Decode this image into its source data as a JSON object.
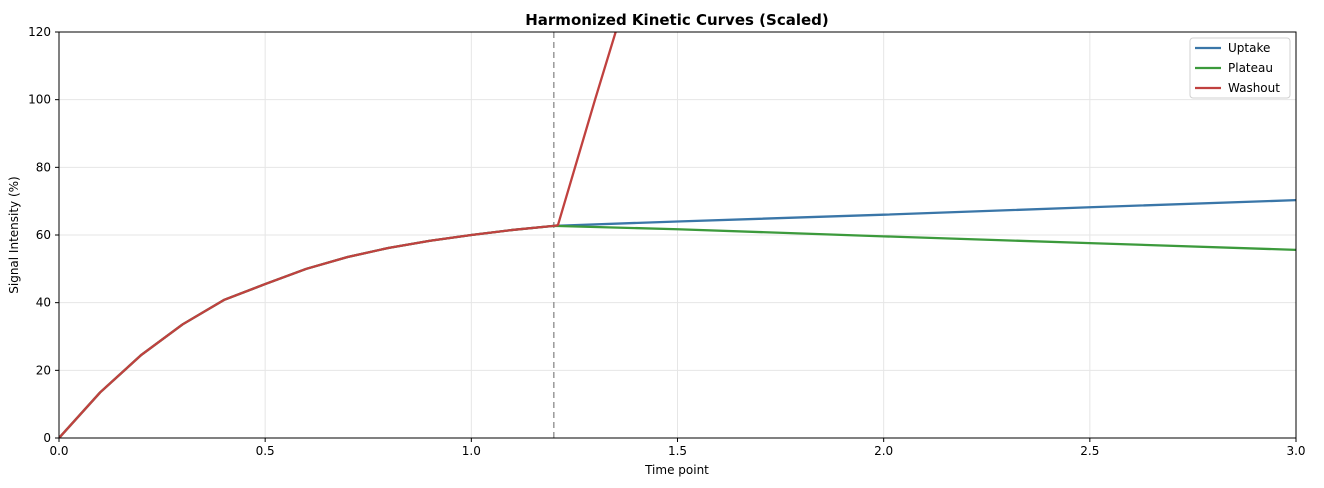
{
  "chart_data": {
    "type": "line",
    "title": "Harmonized Kinetic Curves (Scaled)",
    "xlabel": "Time point",
    "ylabel": "Signal Intensity (%)",
    "xlim": [
      0,
      3
    ],
    "ylim": [
      0,
      120
    ],
    "xticks": [
      "0.0",
      "0.5",
      "1.0",
      "1.5",
      "2.0",
      "2.5",
      "3.0"
    ],
    "yticks": [
      "0",
      "20",
      "40",
      "60",
      "80",
      "100",
      "120"
    ],
    "grid": true,
    "legend_position": "top-right",
    "vline_x": 1.2,
    "series": [
      {
        "name": "Uptake",
        "color": "#3a76a8",
        "x": [
          0,
          0.1,
          0.2,
          0.3,
          0.4,
          0.5,
          0.6,
          0.7,
          0.8,
          0.9,
          1.0,
          1.1,
          1.2,
          1.5,
          2.0,
          2.5,
          3.0
        ],
        "y": [
          0,
          13.5,
          24.6,
          33.6,
          40.8,
          45.5,
          50.0,
          53.5,
          56.2,
          58.3,
          60.0,
          61.5,
          62.7,
          64.0,
          66.0,
          68.2,
          70.3
        ]
      },
      {
        "name": "Plateau",
        "color": "#3c9a3c",
        "x": [
          0,
          0.1,
          0.2,
          0.3,
          0.4,
          0.5,
          0.6,
          0.7,
          0.8,
          0.9,
          1.0,
          1.1,
          1.2,
          1.5,
          2.0,
          2.5,
          3.0
        ],
        "y": [
          0,
          13.5,
          24.6,
          33.6,
          40.8,
          45.5,
          50.0,
          53.5,
          56.2,
          58.3,
          60.0,
          61.5,
          62.7,
          61.7,
          59.6,
          57.6,
          55.6
        ]
      },
      {
        "name": "Washout",
        "color": "#c0413f",
        "x": [
          0,
          0.1,
          0.2,
          0.3,
          0.4,
          0.5,
          0.6,
          0.7,
          0.8,
          0.9,
          1.0,
          1.1,
          1.2,
          1.21,
          1.3,
          1.35
        ],
        "y": [
          0,
          13.5,
          24.6,
          33.6,
          40.8,
          45.5,
          50.0,
          53.5,
          56.2,
          58.3,
          60.0,
          61.5,
          62.7,
          62.9,
          100.0,
          120.0
        ]
      }
    ]
  }
}
